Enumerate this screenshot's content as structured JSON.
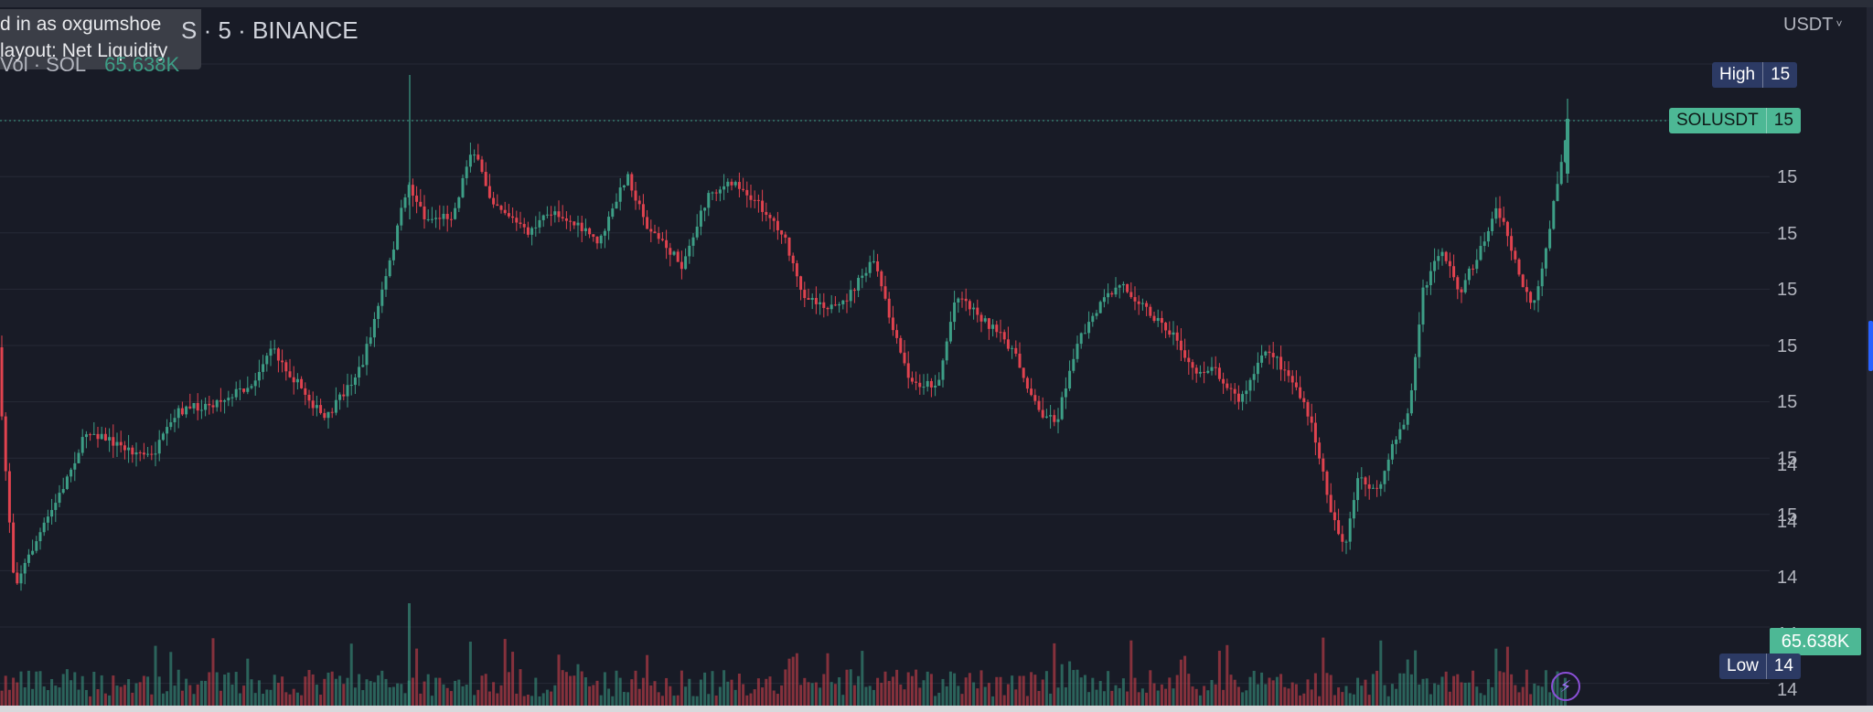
{
  "header": {
    "symbol_title": "S · 5 · BINANCE",
    "vol_legend_label": "Vol · SOL",
    "vol_legend_value": "65.638K",
    "currency": "USDT"
  },
  "tooltip": {
    "line1": "d in as oxgumshoe",
    "line2": "layout: Net Liquidity"
  },
  "price_axis": {
    "labels": [
      "15",
      "15",
      "15",
      "15",
      "15",
      "15",
      "15",
      "14",
      "14",
      "14",
      "14",
      "14"
    ]
  },
  "badges": {
    "high_label": "High",
    "high_value": "15",
    "symbol_label": "SOLUSDT",
    "symbol_value": "15",
    "low_label": "Low",
    "low_value": "14",
    "volume_value": "65.638K"
  },
  "colors": {
    "background": "#181b26",
    "up": "#3d9e86",
    "down": "#e0434f",
    "grid": "#262a36",
    "badge_high_low": "#2c3a64",
    "badge_symbol": "#4db895"
  },
  "icons": {
    "bolt": "lightning-icon",
    "chevron": "chevron-down-icon"
  }
}
